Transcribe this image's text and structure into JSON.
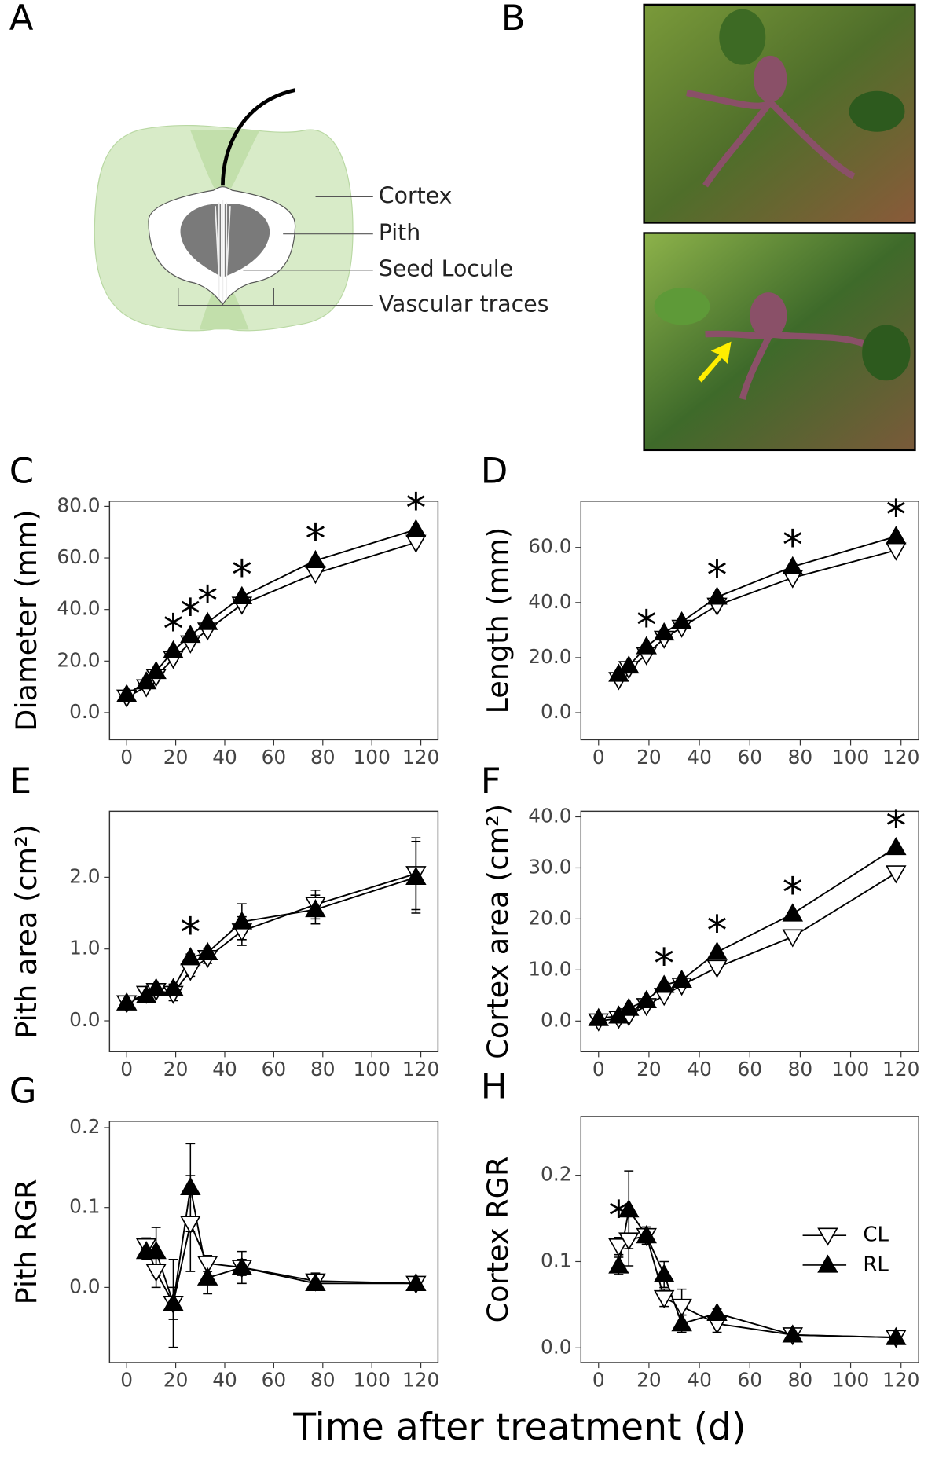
{
  "panel_a": {
    "letter": "A",
    "labels": [
      "Cortex",
      "Pith",
      "Seed Locule",
      "Vascular traces"
    ]
  },
  "panel_b": {
    "letter": "B"
  },
  "x_axis_label": "Time after treatment (d)",
  "chart_data": [
    {
      "type": "line",
      "panel": "C",
      "ylabel": "Diameter (mm)",
      "x": [
        0,
        8,
        12,
        19,
        26,
        33,
        47,
        77,
        118
      ],
      "series": [
        {
          "name": "CL",
          "color": "#ffffff",
          "marker": "down",
          "values": [
            6,
            10,
            14,
            21,
            27,
            32,
            42,
            54,
            66
          ]
        },
        {
          "name": "RL",
          "color": "#000000",
          "marker": "up",
          "values": [
            7,
            12,
            16,
            24,
            30,
            35,
            45,
            59,
            71
          ]
        }
      ],
      "significance": {
        "label": "*",
        "x": [
          19,
          26,
          33,
          47,
          77,
          118
        ]
      },
      "xlim": [
        -7,
        127
      ],
      "xticks": [
        0,
        20,
        40,
        60,
        80,
        100,
        120
      ],
      "ylim": [
        -10.5,
        82
      ],
      "yticks": [
        {
          "value": 0,
          "label": "0.0"
        },
        {
          "value": 20,
          "label": "20.0"
        },
        {
          "value": 40,
          "label": "40.0"
        },
        {
          "value": 60,
          "label": "60.0"
        },
        {
          "value": 80,
          "label": "80.0"
        }
      ],
      "legend": false
    },
    {
      "type": "line",
      "panel": "D",
      "ylabel": "Length (mm)",
      "x": [
        8,
        12,
        19,
        26,
        33,
        47,
        77,
        118
      ],
      "series": [
        {
          "name": "CL",
          "color": "#ffffff",
          "marker": "down",
          "values": [
            12,
            16,
            21,
            27,
            31,
            39,
            49,
            59
          ]
        },
        {
          "name": "RL",
          "color": "#000000",
          "marker": "up",
          "values": [
            14,
            17,
            24,
            29,
            33,
            42,
            53,
            64
          ]
        }
      ],
      "significance": {
        "label": "*",
        "x": [
          19,
          47,
          77,
          118
        ]
      },
      "xlim": [
        -7,
        127
      ],
      "xticks": [
        0,
        20,
        40,
        60,
        80,
        100,
        120
      ],
      "ylim": [
        -9.8,
        76.8
      ],
      "yticks": [
        {
          "value": 0,
          "label": "0.0"
        },
        {
          "value": 20,
          "label": "20.0"
        },
        {
          "value": 40,
          "label": "40.0"
        },
        {
          "value": 60,
          "label": "60.0"
        }
      ],
      "legend": false
    },
    {
      "type": "line",
      "panel": "E",
      "ylabel": "Pith area (cm²)",
      "x": [
        0,
        8,
        12,
        19,
        26,
        33,
        47,
        77,
        118
      ],
      "series": [
        {
          "name": "CL",
          "color": "#ffffff",
          "marker": "down",
          "values": [
            0.25,
            0.38,
            0.42,
            0.38,
            0.7,
            0.88,
            1.25,
            1.62,
            2.05
          ],
          "errors": [
            0.03,
            0.04,
            0.04,
            0.1,
            0.08,
            0.08,
            0.2,
            0.2,
            0.5
          ]
        },
        {
          "name": "RL",
          "color": "#000000",
          "marker": "up",
          "values": [
            0.25,
            0.35,
            0.45,
            0.45,
            0.88,
            0.95,
            1.38,
            1.55,
            2.0
          ],
          "errors": [
            0.03,
            0.04,
            0.04,
            0.06,
            0.05,
            0.06,
            0.25,
            0.2,
            0.5
          ]
        }
      ],
      "significance": {
        "label": "*",
        "x": [
          26
        ]
      },
      "xlim": [
        -7,
        127
      ],
      "xticks": [
        0,
        20,
        40,
        60,
        80,
        100,
        120
      ],
      "ylim": [
        -0.43,
        2.92
      ],
      "yticks": [
        {
          "value": 0,
          "label": "0.0"
        },
        {
          "value": 1,
          "label": "1.0"
        },
        {
          "value": 2,
          "label": "2.0"
        }
      ],
      "legend": false
    },
    {
      "type": "line",
      "panel": "F",
      "ylabel": "Cortex area (cm²)",
      "x": [
        0,
        8,
        12,
        19,
        26,
        33,
        47,
        77,
        118
      ],
      "series": [
        {
          "name": "CL",
          "color": "#ffffff",
          "marker": "down",
          "values": [
            0,
            0.5,
            1,
            3,
            5,
            7,
            10.5,
            16.5,
            29
          ]
        },
        {
          "name": "RL",
          "color": "#000000",
          "marker": "up",
          "values": [
            0.5,
            1,
            2.5,
            4,
            7,
            8,
            13.5,
            21,
            34
          ]
        }
      ],
      "significance": {
        "label": "*",
        "x": [
          26,
          47,
          77,
          118
        ]
      },
      "xlim": [
        -7,
        127
      ],
      "xticks": [
        0,
        20,
        40,
        60,
        80,
        100,
        120
      ],
      "ylim": [
        -6,
        41.1
      ],
      "yticks": [
        {
          "value": 0,
          "label": "0.0"
        },
        {
          "value": 10,
          "label": "10.0"
        },
        {
          "value": 20,
          "label": "20.0"
        },
        {
          "value": 30,
          "label": "30.0"
        },
        {
          "value": 40,
          "label": "40.0"
        }
      ],
      "legend": false
    },
    {
      "type": "line",
      "panel": "G",
      "ylabel": "Pith RGR",
      "x": [
        8,
        12,
        19,
        26,
        33,
        47,
        77,
        118
      ],
      "series": [
        {
          "name": "CL",
          "color": "#ffffff",
          "marker": "down",
          "values": [
            0.052,
            0.02,
            -0.02,
            0.08,
            0.03,
            0.025,
            0.008,
            0.005
          ],
          "errors": [
            0.01,
            0.02,
            0.055,
            0.06,
            0.01,
            0.02,
            0.01,
            0.005
          ]
        },
        {
          "name": "RL",
          "color": "#000000",
          "marker": "up",
          "values": [
            0.045,
            0.045,
            -0.02,
            0.125,
            0.012,
            0.025,
            0.005,
            0.005
          ],
          "errors": [
            0.01,
            0.03,
            0.02,
            0.055,
            0.02,
            0.01,
            0.005,
            0.005
          ]
        }
      ],
      "xlim": [
        -7,
        127
      ],
      "xticks": [
        0,
        20,
        40,
        60,
        80,
        100,
        120
      ],
      "ylim": [
        -0.094,
        0.208
      ],
      "yticks": [
        {
          "value": 0,
          "label": "0.0"
        },
        0.1,
        0.2
      ],
      "legend": false
    },
    {
      "type": "line",
      "panel": "H",
      "ylabel": "Cortex RGR",
      "x": [
        8,
        12,
        19,
        26,
        33,
        47,
        77,
        118
      ],
      "series": [
        {
          "name": "CL",
          "color": "#ffffff",
          "marker": "down",
          "values": [
            0.118,
            0.125,
            0.13,
            0.058,
            0.048,
            0.028,
            0.015,
            0.012
          ],
          "errors": [
            0.01,
            0.03,
            0.01,
            0.01,
            0.02,
            0.01,
            0.005,
            0.005
          ]
        },
        {
          "name": "RL",
          "color": "#000000",
          "marker": "up",
          "values": [
            0.095,
            0.16,
            0.13,
            0.085,
            0.028,
            0.04,
            0.015,
            0.012
          ],
          "errors": [
            0.01,
            0.045,
            0.01,
            0.015,
            0.01,
            0.005,
            0.005,
            0.005
          ]
        }
      ],
      "significance": {
        "label": "*",
        "x": [
          8
        ]
      },
      "xlim": [
        -7,
        127
      ],
      "xticks": [
        0,
        20,
        40,
        60,
        80,
        100,
        120
      ],
      "ylim": [
        -0.017,
        0.268
      ],
      "yticks": [
        {
          "value": 0,
          "label": "0.0"
        },
        0.1,
        0.2
      ],
      "legend": true
    }
  ]
}
